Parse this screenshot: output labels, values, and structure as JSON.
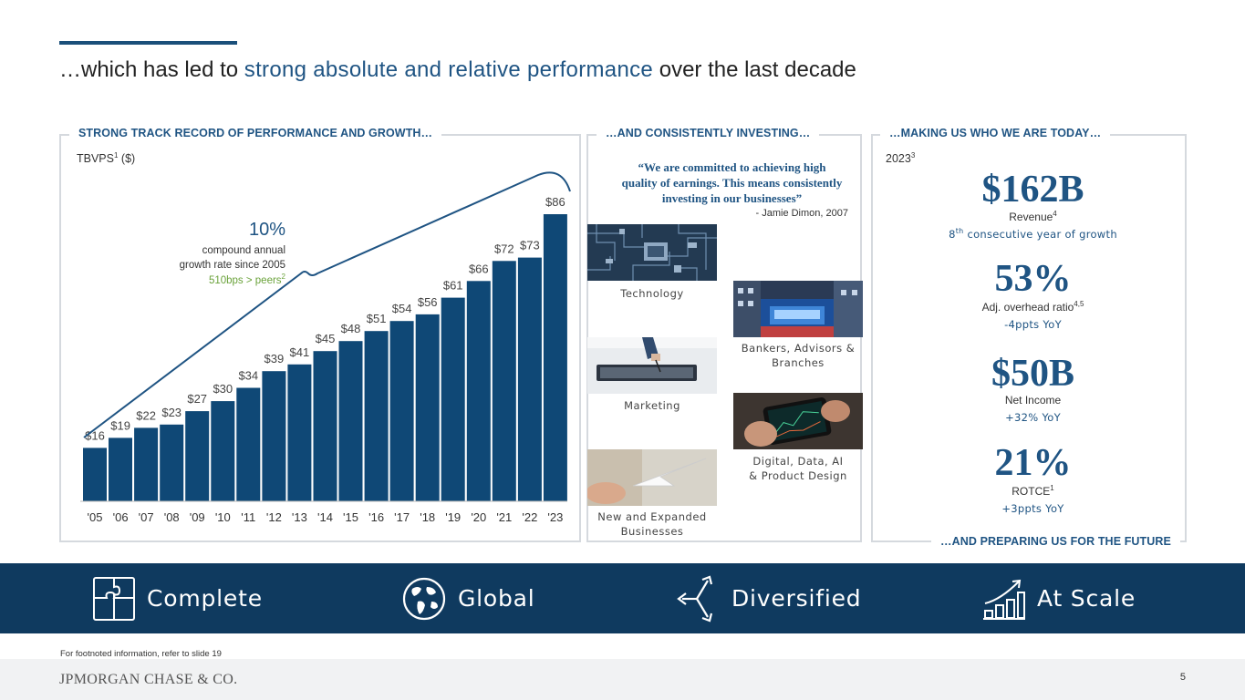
{
  "headline": {
    "prefix": "…which has led to ",
    "highlight": "strong absolute and relative performance",
    "suffix": " over the last decade"
  },
  "panels": {
    "left_title": "STRONG TRACK RECORD OF PERFORMANCE AND GROWTH…",
    "middle_title": "…AND CONSISTENTLY INVESTING…",
    "right_title": "…MAKING US WHO WE ARE TODAY…",
    "right_bottom_title": "…AND PREPARING US FOR THE FUTURE"
  },
  "chart_data": {
    "type": "bar",
    "title": "TBVPS",
    "title_sup": "1",
    "title_suffix": " ($)",
    "categories": [
      "'05",
      "'06",
      "'07",
      "'08",
      "'09",
      "'10",
      "'11",
      "'12",
      "'13",
      "'14",
      "'15",
      "'16",
      "'17",
      "'18",
      "'19",
      "'20",
      "'21",
      "'22",
      "'23"
    ],
    "values": [
      16,
      19,
      22,
      23,
      27,
      30,
      34,
      39,
      41,
      45,
      48,
      51,
      54,
      56,
      61,
      66,
      72,
      73,
      86
    ],
    "labels": [
      "$16",
      "$19",
      "$22",
      "$23",
      "$27",
      "$30",
      "$34",
      "$39",
      "$41",
      "$45",
      "$48",
      "$51",
      "$54",
      "$56",
      "$61",
      "$66",
      "$72",
      "$73",
      "$86"
    ],
    "ylim": [
      0,
      86
    ],
    "bar_color": "#0f4876",
    "annotation": {
      "value": "10%",
      "line1": "compound annual",
      "line2": "growth rate since 2005",
      "peers": "510bps > peers",
      "peers_sup": "2"
    }
  },
  "investing": {
    "quote_line1": "“We are committed to achieving high",
    "quote_line2": "quality of earnings. This means consistently",
    "quote_line3": "investing in our businesses”",
    "attribution": "- Jamie Dimon, 2007",
    "items": {
      "technology": "Technology",
      "bankers_line1": "Bankers, Advisors &",
      "bankers_line2": "Branches",
      "marketing": "Marketing",
      "digital_line1": "Digital, Data, AI",
      "digital_line2": "& Product Design",
      "new_line1": "New and Expanded",
      "new_line2": "Businesses"
    }
  },
  "today": {
    "year": "2023",
    "year_sup": "3",
    "revenue": {
      "value": "$162B",
      "label": "Revenue",
      "label_sup": "4",
      "sub_prefix": "8",
      "sub_sup": "th",
      "sub_suffix": " consecutive year of growth"
    },
    "overhead": {
      "value": "53%",
      "label": "Adj. overhead ratio",
      "label_sup": "4,5",
      "sub": "-4ppts YoY"
    },
    "net_income": {
      "value": "$50B",
      "label": "Net Income",
      "sub": "+32% YoY"
    },
    "rotce": {
      "value": "21%",
      "label": "ROTCE",
      "label_sup": "1",
      "sub": "+3ppts YoY"
    }
  },
  "pillars": [
    "Complete",
    "Global",
    "Diversified",
    "At Scale"
  ],
  "footnote": "For footnoted information, refer to slide 19",
  "footer": {
    "logo": "JPMORGAN CHASE & CO.",
    "page": "5"
  }
}
